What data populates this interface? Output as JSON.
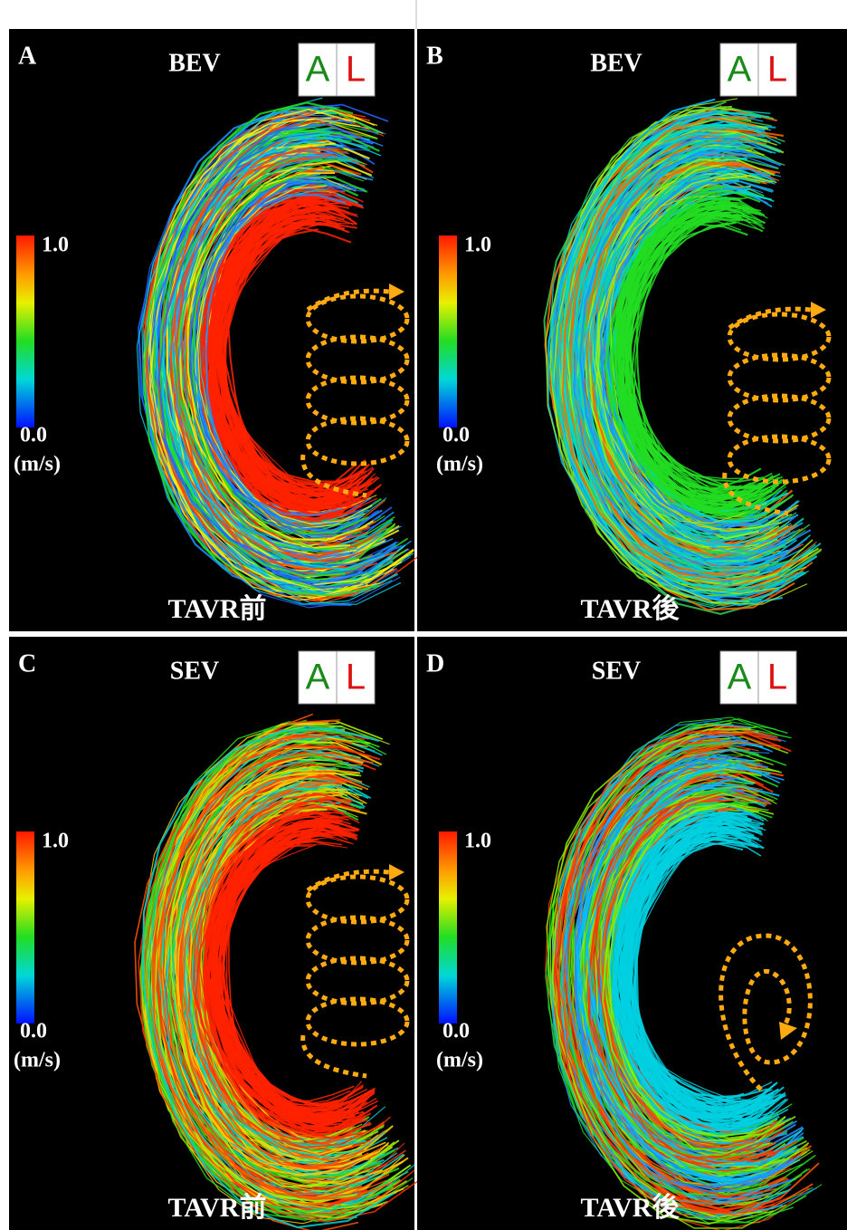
{
  "panels": [
    {
      "letter": "A",
      "valve": "BEV",
      "cube": [
        "A",
        "L"
      ],
      "colorbar": {
        "max": "1.0",
        "min": "0.0",
        "unit": "(m/s)"
      },
      "caption": "TAVR前"
    },
    {
      "letter": "B",
      "valve": "BEV",
      "cube": [
        "A",
        "L"
      ],
      "colorbar": {
        "max": "1.0",
        "min": "0.0",
        "unit": "(m/s)"
      },
      "caption": "TAVR後"
    },
    {
      "letter": "C",
      "valve": "SEV",
      "cube": [
        "A",
        "L"
      ],
      "colorbar": {
        "max": "1.0",
        "min": "0.0",
        "unit": "(m/s)"
      },
      "caption": "TAVR前"
    },
    {
      "letter": "D",
      "valve": "SEV",
      "cube": [
        "A",
        "L"
      ],
      "colorbar": {
        "max": "1.0",
        "min": "0.0",
        "unit": "(m/s)"
      },
      "caption": "TAVR後"
    }
  ]
}
